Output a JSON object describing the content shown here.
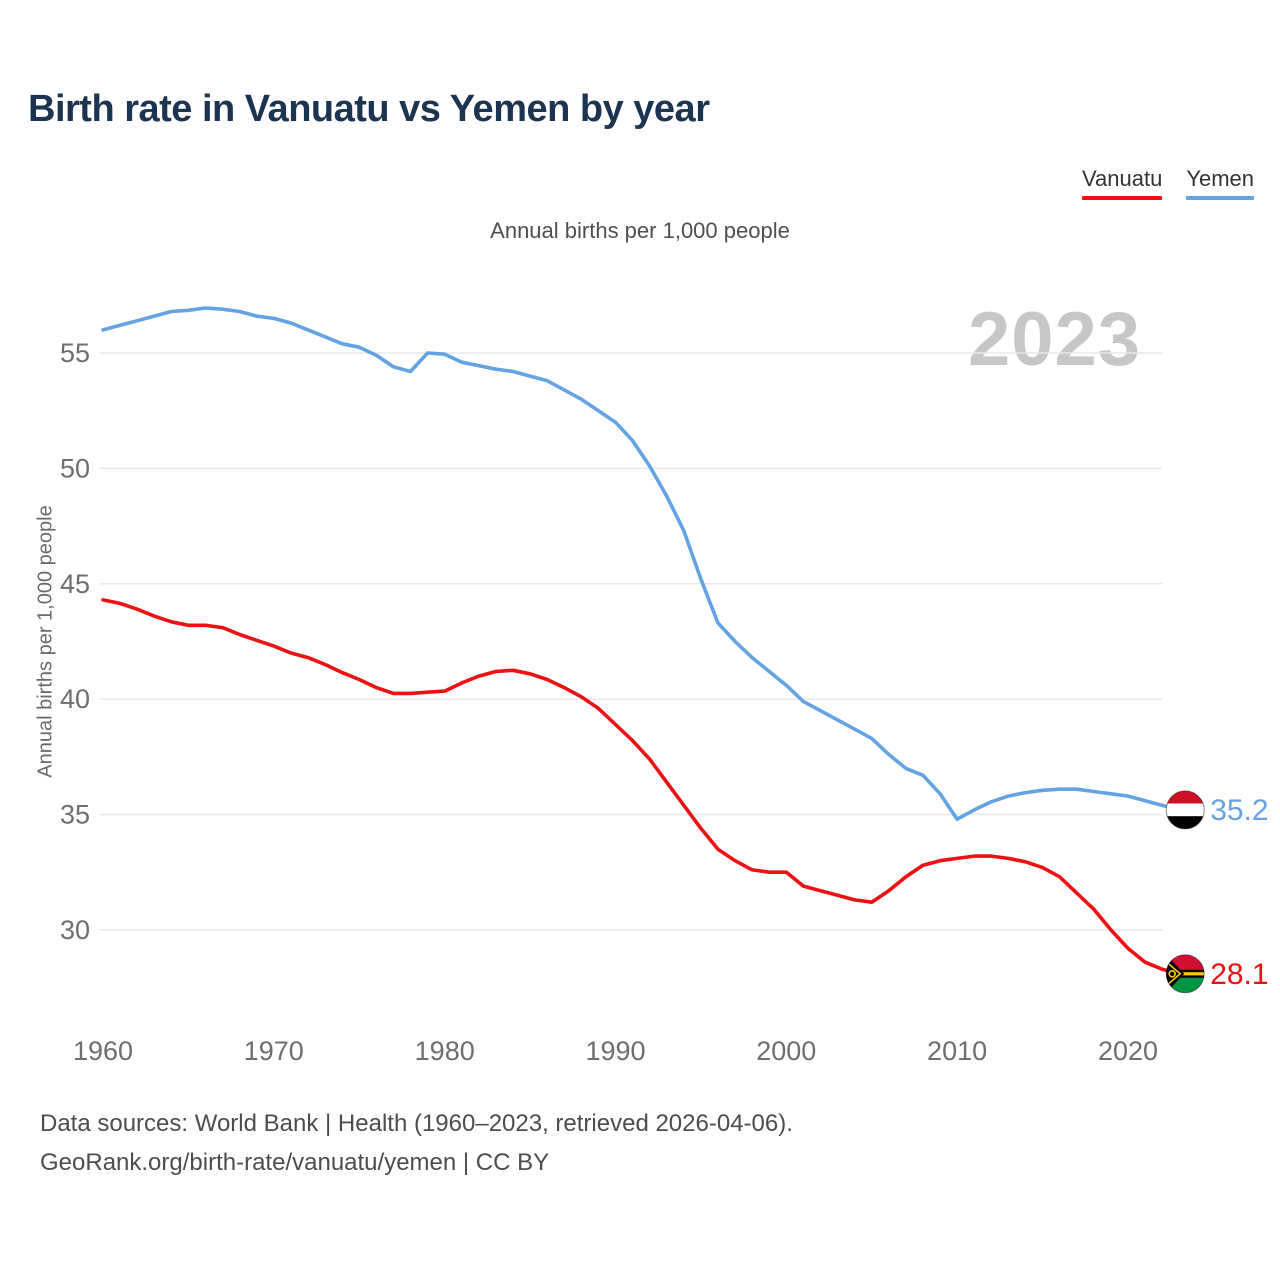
{
  "page": {
    "title": "Birth rate in Vanuatu vs Yemen by year",
    "subtitle": "Annual births per 1,000 people",
    "watermark": "2023",
    "footer_line1": "Data sources: World Bank | Health (1960–2023, retrieved 2026-04-06).",
    "footer_line2": "GeoRank.org/birth-rate/vanuatu/yemen | CC BY"
  },
  "legend": [
    {
      "label": "Vanuatu",
      "color": "#ee1111"
    },
    {
      "label": "Yemen",
      "color": "#64a3e3"
    }
  ],
  "colors": {
    "vanuatu_line": "#ee1111",
    "yemen_line": "#64a3e3",
    "gridline": "#e8e8e8",
    "tick_text": "#6e6e6e",
    "title_text": "#1b3451",
    "watermark_text": "#c7c7c7"
  },
  "chart_data": {
    "type": "line",
    "title": "Birth rate in Vanuatu vs Yemen by year",
    "subtitle": "Annual births per 1,000 people",
    "xlabel": "",
    "ylabel": "Annual births per 1,000 people",
    "grid": "horizontal",
    "legend_position": "top-right",
    "x_ticks": [
      1960,
      1970,
      1980,
      1990,
      2000,
      2010,
      2020
    ],
    "y_ticks": [
      30,
      35,
      40,
      45,
      50,
      55
    ],
    "ylim": [
      27.5,
      58.0
    ],
    "xlim": [
      1959.8,
      2028.9
    ],
    "x": [
      1960,
      1961,
      1962,
      1963,
      1964,
      1965,
      1966,
      1967,
      1968,
      1969,
      1970,
      1971,
      1972,
      1973,
      1974,
      1975,
      1976,
      1977,
      1978,
      1979,
      1980,
      1981,
      1982,
      1983,
      1984,
      1985,
      1986,
      1987,
      1988,
      1989,
      1990,
      1991,
      1992,
      1993,
      1994,
      1995,
      1996,
      1997,
      1998,
      1999,
      2000,
      2001,
      2002,
      2003,
      2004,
      2005,
      2006,
      2007,
      2008,
      2009,
      2010,
      2011,
      2012,
      2013,
      2014,
      2015,
      2016,
      2017,
      2018,
      2019,
      2020,
      2021,
      2022,
      2023
    ],
    "series": [
      {
        "name": "Vanuatu",
        "color": "#ee1111",
        "end_label": "28.1",
        "end_marker_icon": "vanuatu-flag-icon",
        "values": [
          44.3,
          44.15,
          43.9,
          43.6,
          43.35,
          43.2,
          43.2,
          43.1,
          42.8,
          42.55,
          42.3,
          42.0,
          41.8,
          41.5,
          41.15,
          40.85,
          40.5,
          40.25,
          40.25,
          40.3,
          40.35,
          40.7,
          41.0,
          41.2,
          41.25,
          41.1,
          40.85,
          40.5,
          40.1,
          39.6,
          38.9,
          38.2,
          37.4,
          36.4,
          35.4,
          34.4,
          33.5,
          33.0,
          32.6,
          32.5,
          32.5,
          31.9,
          31.7,
          31.5,
          31.3,
          31.2,
          31.7,
          32.3,
          32.8,
          33.0,
          33.1,
          33.2,
          33.2,
          33.1,
          32.95,
          32.7,
          32.3,
          31.6,
          30.9,
          30.0,
          29.2,
          28.6,
          28.3,
          28.1
        ]
      },
      {
        "name": "Yemen",
        "color": "#64a3e3",
        "end_label": "35.2",
        "end_marker_icon": "yemen-flag-icon",
        "values": [
          56.0,
          56.2,
          56.4,
          56.6,
          56.8,
          56.85,
          56.95,
          56.9,
          56.8,
          56.6,
          56.5,
          56.3,
          56.0,
          55.7,
          55.4,
          55.25,
          54.9,
          54.4,
          54.2,
          55.0,
          54.95,
          54.6,
          54.45,
          54.3,
          54.2,
          54.0,
          53.8,
          53.4,
          53.0,
          52.5,
          52.0,
          51.2,
          50.1,
          48.8,
          47.3,
          45.2,
          43.3,
          42.5,
          41.8,
          41.2,
          40.6,
          39.9,
          39.5,
          39.1,
          38.7,
          38.3,
          37.6,
          37.0,
          36.7,
          35.9,
          34.8,
          35.2,
          35.55,
          35.8,
          35.95,
          36.05,
          36.1,
          36.1,
          36.0,
          35.9,
          35.8,
          35.6,
          35.4,
          35.2
        ]
      }
    ]
  }
}
